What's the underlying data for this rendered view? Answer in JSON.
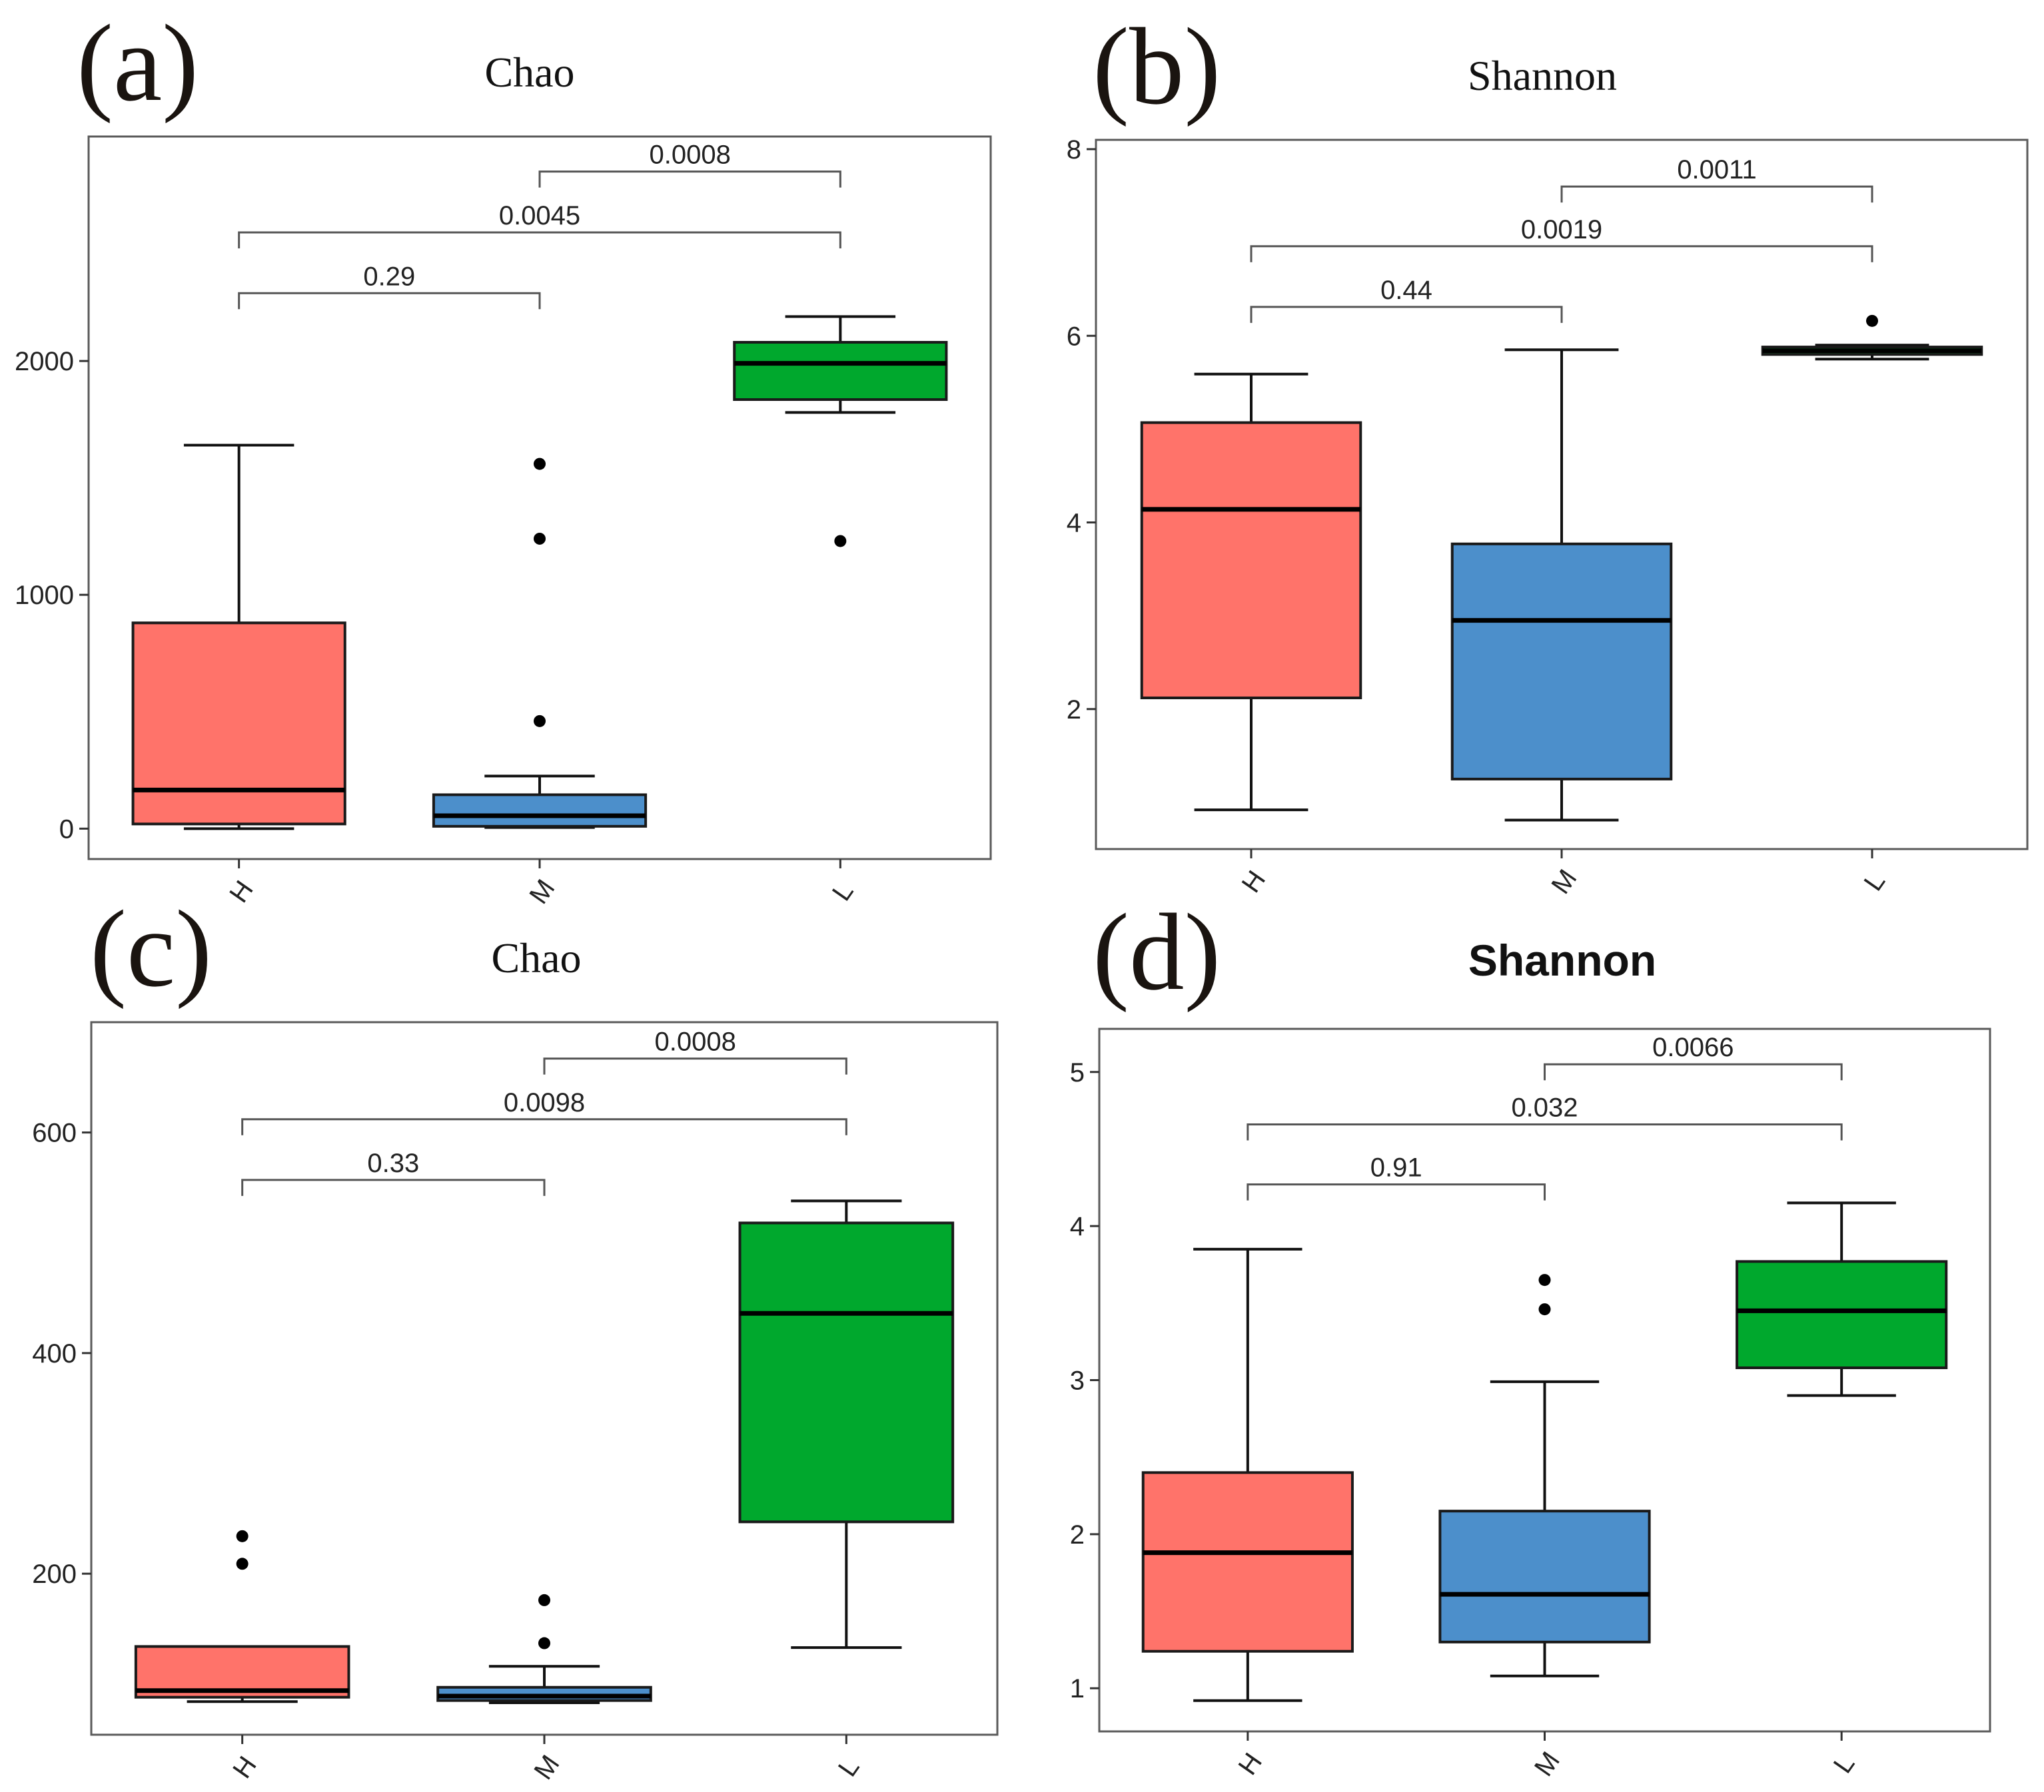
{
  "chart_data": [
    {
      "type": "box",
      "panel_label": "(a)",
      "title": "Chao",
      "categories": [
        "H",
        "M",
        "L"
      ],
      "ylim": [
        -130,
        2960
      ],
      "yticks": [
        0,
        1000,
        2000
      ],
      "colors": [
        "#FF736A",
        "#4C8FCB",
        "#00A82D"
      ],
      "boxes": [
        {
          "category": "H",
          "min": 0,
          "q1": 20,
          "median": 165,
          "q3": 880,
          "max": 1640,
          "outliers": []
        },
        {
          "category": "M",
          "min": 5,
          "q1": 10,
          "median": 55,
          "q3": 145,
          "max": 225,
          "outliers": [
            1560,
            1240,
            460
          ]
        },
        {
          "category": "L",
          "min": 1780,
          "q1": 1835,
          "median": 1990,
          "q3": 2080,
          "max": 2190,
          "outliers": [
            1230
          ]
        }
      ],
      "comparisons": [
        {
          "from": "M",
          "to": "L",
          "p": "0.0008",
          "y": 2810
        },
        {
          "from": "H",
          "to": "L",
          "p": "0.0045",
          "y": 2550
        },
        {
          "from": "H",
          "to": "M",
          "p": "0.29",
          "y": 2290
        }
      ]
    },
    {
      "type": "box",
      "panel_label": "(b)",
      "title": "Shannon",
      "categories": [
        "H",
        "M",
        "L"
      ],
      "ylim": [
        0.5,
        8.1
      ],
      "yticks": [
        2,
        4,
        6,
        8
      ],
      "colors": [
        "#FF736A",
        "#4C8FCB",
        "#00A82D"
      ],
      "boxes": [
        {
          "category": "H",
          "min": 0.92,
          "q1": 2.12,
          "median": 4.14,
          "q3": 5.07,
          "max": 5.59,
          "outliers": []
        },
        {
          "category": "M",
          "min": 0.81,
          "q1": 1.25,
          "median": 2.95,
          "q3": 3.77,
          "max": 5.85,
          "outliers": []
        },
        {
          "category": "L",
          "min": 5.75,
          "q1": 5.8,
          "median": 5.84,
          "q3": 5.88,
          "max": 5.9,
          "outliers": [
            6.16
          ]
        }
      ],
      "comparisons": [
        {
          "from": "M",
          "to": "L",
          "p": "0.0011",
          "y": 7.6
        },
        {
          "from": "H",
          "to": "L",
          "p": "0.0019",
          "y": 6.96
        },
        {
          "from": "H",
          "to": "M",
          "p": "0.44",
          "y": 6.31
        }
      ]
    },
    {
      "type": "box",
      "panel_label": "(c)",
      "title": "Chao",
      "categories": [
        "H",
        "M",
        "L"
      ],
      "ylim": [
        54,
        700
      ],
      "yticks": [
        200,
        400,
        600
      ],
      "colors": [
        "#FF736A",
        "#4C8FCB",
        "#00A82D"
      ],
      "boxes": [
        {
          "category": "H",
          "min": 84,
          "q1": 88,
          "median": 94,
          "q3": 134,
          "max": 134,
          "outliers": [
            234,
            209
          ]
        },
        {
          "category": "M",
          "min": 83,
          "q1": 85,
          "median": 89,
          "q3": 97,
          "max": 116,
          "outliers": [
            176,
            137
          ]
        },
        {
          "category": "L",
          "min": 133,
          "q1": 247,
          "median": 436,
          "q3": 518,
          "max": 538,
          "outliers": []
        }
      ],
      "comparisons": [
        {
          "from": "M",
          "to": "L",
          "p": "0.0008",
          "y": 667
        },
        {
          "from": "H",
          "to": "L",
          "p": "0.0098",
          "y": 612
        },
        {
          "from": "H",
          "to": "M",
          "p": "0.33",
          "y": 557
        }
      ]
    },
    {
      "type": "box",
      "panel_label": "(d)",
      "title": "Shannon",
      "categories": [
        "H",
        "M",
        "L"
      ],
      "ylim": [
        0.72,
        5.28
      ],
      "yticks": [
        1,
        2,
        3,
        4,
        5
      ],
      "colors": [
        "#FF736A",
        "#4C8FCB",
        "#00A82D"
      ],
      "boxes": [
        {
          "category": "H",
          "min": 0.92,
          "q1": 1.24,
          "median": 1.88,
          "q3": 2.4,
          "max": 3.85,
          "outliers": []
        },
        {
          "category": "M",
          "min": 1.08,
          "q1": 1.3,
          "median": 1.61,
          "q3": 2.15,
          "max": 2.99,
          "outliers": [
            3.65,
            3.46
          ]
        },
        {
          "category": "L",
          "min": 2.9,
          "q1": 3.08,
          "median": 3.45,
          "q3": 3.77,
          "max": 4.15,
          "outliers": []
        }
      ],
      "comparisons": [
        {
          "from": "M",
          "to": "L",
          "p": "0.0066",
          "y": 5.05
        },
        {
          "from": "H",
          "to": "L",
          "p": "0.032",
          "y": 4.66
        },
        {
          "from": "H",
          "to": "M",
          "p": "0.91",
          "y": 4.27
        }
      ]
    }
  ]
}
